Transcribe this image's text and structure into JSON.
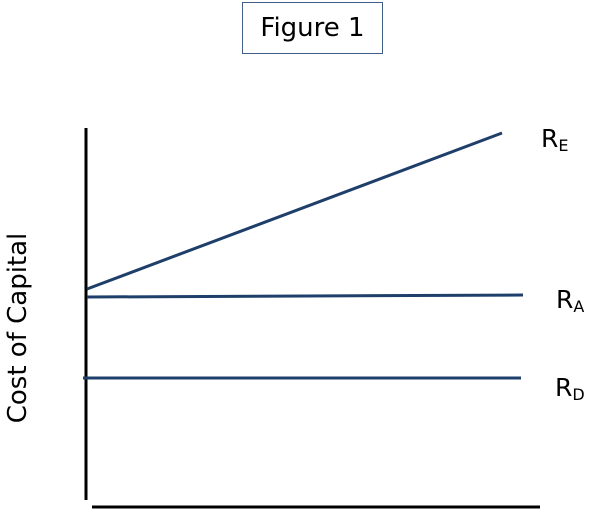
{
  "figure": {
    "title": "Figure 1"
  },
  "axes": {
    "y_label": "Cost of Capital"
  },
  "lines": [
    {
      "key": "re",
      "symbol": "R",
      "subscript": "E"
    },
    {
      "key": "ra",
      "symbol": "R",
      "subscript": "A"
    },
    {
      "key": "rd",
      "symbol": "R",
      "subscript": "D"
    }
  ],
  "colors": {
    "line": "#1f3f6b",
    "axis": "#000000",
    "title_border": "#3f5f86"
  }
}
